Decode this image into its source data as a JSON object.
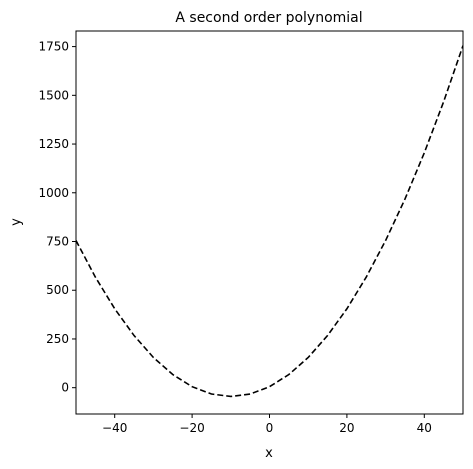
{
  "chart_data": {
    "type": "line",
    "title": "A second order polynomial",
    "xlabel": "x",
    "ylabel": "y",
    "xlim": [
      -50,
      50
    ],
    "ylim": [
      -135,
      1830
    ],
    "xticks": [
      -40,
      -20,
      0,
      20,
      40
    ],
    "yticks": [
      0,
      250,
      500,
      750,
      1000,
      1250,
      1500,
      1750
    ],
    "grid": false,
    "legend": "none",
    "series": [
      {
        "color": "#000000",
        "line_style": "dashed",
        "formula": "y = 0.5*x^2 + 10*x + 5",
        "x": [
          -50,
          -45,
          -40,
          -35,
          -30,
          -25,
          -20,
          -15,
          -10,
          -5,
          0,
          5,
          10,
          15,
          20,
          25,
          30,
          35,
          40,
          45,
          50
        ],
        "y": [
          755,
          567.5,
          405,
          267.5,
          155,
          67.5,
          5,
          -32.5,
          -45,
          -32.5,
          5,
          67.5,
          155,
          267.5,
          405,
          567.5,
          755,
          967.5,
          1205,
          1467.5,
          1755
        ]
      }
    ]
  }
}
